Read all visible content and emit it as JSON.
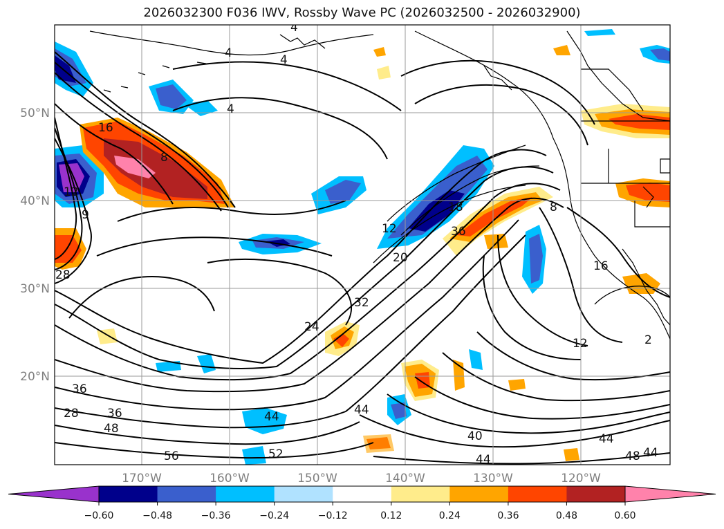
{
  "map": {
    "title": "2026032300 F036 IWV, Rossby Wave PC (2026032500 - 2026032900)",
    "lat_labels": [
      "50°N",
      "40°N",
      "30°N",
      "20°N"
    ],
    "lon_labels": [
      "170°W",
      "160°W",
      "150°W",
      "140°W",
      "130°W",
      "120°W"
    ],
    "contour_labels": [
      "4",
      "4",
      "4",
      "4",
      "16",
      "8",
      "12",
      "9",
      "28",
      "12",
      "20",
      "18",
      "36",
      "8",
      "16",
      "24",
      "32",
      "12",
      "36",
      "28",
      "36",
      "48",
      "56",
      "44",
      "52",
      "44",
      "40",
      "44",
      "44",
      "48",
      "44",
      "2"
    ]
  },
  "colorbar": {
    "ticks": [
      "−0.60",
      "−0.48",
      "−0.36",
      "−0.24",
      "−0.12",
      "0.12",
      "0.24",
      "0.36",
      "0.48",
      "0.60"
    ],
    "colors": [
      "#9932cc",
      "#00008b",
      "#3a5fcd",
      "#00bfff",
      "#b0e2ff",
      "#ffffff",
      "#ffec8b",
      "#ffa500",
      "#ff4500",
      "#b22222",
      "#ff82ab"
    ]
  }
}
